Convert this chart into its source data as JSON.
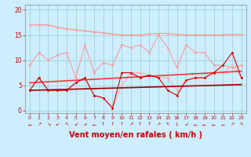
{
  "x": [
    0,
    1,
    2,
    3,
    4,
    5,
    6,
    7,
    8,
    9,
    10,
    11,
    12,
    13,
    14,
    15,
    16,
    17,
    18,
    19,
    20,
    21,
    22,
    23
  ],
  "background_color": "#cceeff",
  "grid_color": "#99cccc",
  "xlabel": "Vent moyen/en rafales ( km/h )",
  "xlabel_color": "#cc0000",
  "xlabel_fontsize": 7,
  "tick_color": "#cc0000",
  "ylim": [
    -0.5,
    21
  ],
  "yticks": [
    0,
    5,
    10,
    15,
    20
  ],
  "series": [
    {
      "name": "top_flat_pink",
      "color": "#ff9999",
      "linewidth": 1.0,
      "marker": "o",
      "markersize": 2.0,
      "values": [
        17,
        17,
        17,
        16.5,
        16.2,
        16.0,
        15.8,
        15.6,
        15.4,
        15.2,
        15.0,
        15.0,
        15.0,
        15.2,
        15.3,
        15.3,
        15.1,
        15.0,
        15.0,
        15.0,
        15.0,
        15.0,
        15.1,
        15.1
      ]
    },
    {
      "name": "mid_zigzag_pink",
      "color": "#ff9999",
      "linewidth": 0.8,
      "marker": "o",
      "markersize": 2.0,
      "values": [
        9,
        11.5,
        10,
        11,
        11.5,
        6.5,
        13,
        7.5,
        9.5,
        9,
        13,
        12.5,
        13,
        11.5,
        15,
        12.5,
        8.5,
        13,
        11.5,
        11.5,
        9,
        9,
        8.5,
        9
      ]
    },
    {
      "name": "lower_zigzag_pink",
      "color": "#ffaaaa",
      "linewidth": 0.8,
      "marker": "o",
      "markersize": 2.0,
      "values": [
        4,
        6.5,
        4,
        4,
        4,
        5.5,
        6.5,
        3,
        2.5,
        0.5,
        5,
        7.5,
        7.5,
        7,
        6.5,
        6.5,
        4,
        6,
        6.5,
        6.5,
        7.5,
        7.5,
        9,
        6.5
      ]
    },
    {
      "name": "trend_line_upper_red",
      "color": "#ff3333",
      "linewidth": 1.2,
      "marker": null,
      "markersize": 0,
      "values": [
        5.5,
        5.6,
        5.7,
        5.8,
        5.9,
        6.0,
        6.1,
        6.2,
        6.3,
        6.4,
        6.5,
        6.6,
        6.7,
        6.8,
        6.9,
        7.0,
        7.1,
        7.2,
        7.3,
        7.4,
        7.5,
        7.6,
        7.7,
        7.8
      ]
    },
    {
      "name": "trend_line_lower_darkred",
      "color": "#990000",
      "linewidth": 1.2,
      "marker": null,
      "markersize": 0,
      "values": [
        4.0,
        4.05,
        4.1,
        4.15,
        4.2,
        4.25,
        4.3,
        4.35,
        4.4,
        4.45,
        4.5,
        4.55,
        4.6,
        4.65,
        4.7,
        4.75,
        4.8,
        4.85,
        4.9,
        4.95,
        5.0,
        5.05,
        5.1,
        5.15
      ]
    },
    {
      "name": "volatile_red",
      "color": "#cc0000",
      "linewidth": 0.8,
      "marker": "o",
      "markersize": 2.0,
      "values": [
        4,
        6.5,
        4,
        4,
        4,
        5.5,
        6.5,
        3,
        2.5,
        0.5,
        7.5,
        7.5,
        6.5,
        7,
        6.5,
        4,
        3,
        6,
        6.5,
        6.5,
        7.5,
        9,
        11.5,
        6.5
      ]
    }
  ],
  "arrow_chars": [
    "←",
    "↗",
    "↘",
    "↙",
    "↖",
    "↙",
    "↙",
    "←",
    "↑",
    "↑",
    "↑",
    "↗",
    "↑",
    "↑",
    "↗",
    "↖",
    "↓",
    "↙",
    "←",
    "←",
    "←",
    "←",
    "↗",
    "↖"
  ]
}
